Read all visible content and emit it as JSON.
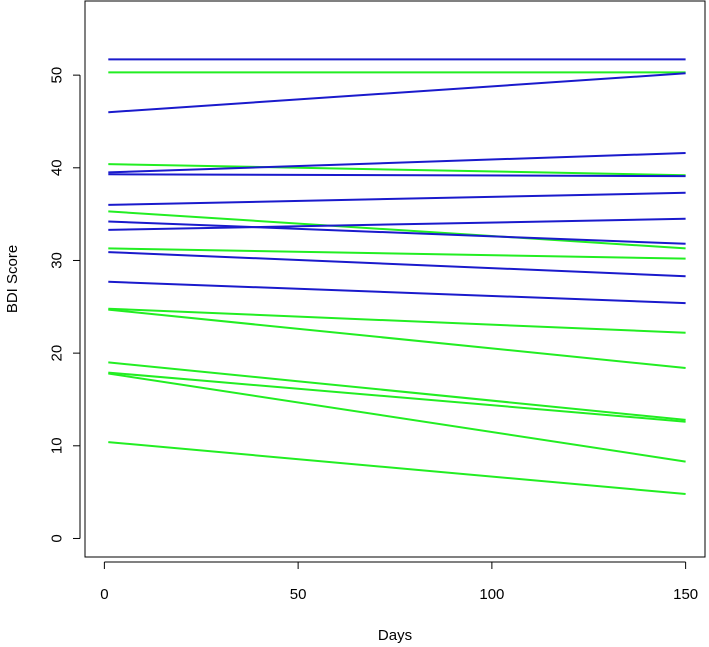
{
  "chart_data": {
    "type": "line",
    "title": "",
    "xlabel": "Days",
    "ylabel": "BDI Score",
    "xlim": [
      -5,
      155
    ],
    "ylim": [
      -2,
      58
    ],
    "x_ticks": [
      0,
      50,
      100,
      150
    ],
    "y_ticks": [
      0,
      10,
      20,
      30,
      40,
      50
    ],
    "x_tick_labels": [
      "0",
      "50",
      "100",
      "150"
    ],
    "y_tick_labels": [
      "0",
      "10",
      "20",
      "30",
      "40",
      "50"
    ],
    "grid": false,
    "legend": "none",
    "colors": {
      "blue": "#1a1acc",
      "green": "#22ee22"
    },
    "series": [
      {
        "color": "blue",
        "x": [
          1,
          150
        ],
        "y": [
          51.7,
          51.7
        ]
      },
      {
        "color": "green",
        "x": [
          1,
          150
        ],
        "y": [
          50.3,
          50.3
        ]
      },
      {
        "color": "blue",
        "x": [
          1,
          150
        ],
        "y": [
          46.0,
          50.2
        ]
      },
      {
        "color": "green",
        "x": [
          1,
          150
        ],
        "y": [
          40.4,
          39.2
        ]
      },
      {
        "color": "blue",
        "x": [
          1,
          150
        ],
        "y": [
          39.5,
          41.6
        ]
      },
      {
        "color": "blue",
        "x": [
          1,
          150
        ],
        "y": [
          39.3,
          39.1
        ]
      },
      {
        "color": "blue",
        "x": [
          1,
          150
        ],
        "y": [
          36.0,
          37.3
        ]
      },
      {
        "color": "green",
        "x": [
          1,
          150
        ],
        "y": [
          35.3,
          31.3
        ]
      },
      {
        "color": "blue",
        "x": [
          1,
          150
        ],
        "y": [
          34.2,
          31.8
        ]
      },
      {
        "color": "blue",
        "x": [
          1,
          150
        ],
        "y": [
          33.3,
          34.5
        ]
      },
      {
        "color": "green",
        "x": [
          1,
          150
        ],
        "y": [
          31.3,
          30.2
        ]
      },
      {
        "color": "blue",
        "x": [
          1,
          150
        ],
        "y": [
          30.9,
          28.3
        ]
      },
      {
        "color": "blue",
        "x": [
          1,
          150
        ],
        "y": [
          27.7,
          25.4
        ]
      },
      {
        "color": "green",
        "x": [
          1,
          150
        ],
        "y": [
          24.8,
          22.2
        ]
      },
      {
        "color": "green",
        "x": [
          1,
          150
        ],
        "y": [
          24.7,
          18.4
        ]
      },
      {
        "color": "green",
        "x": [
          1,
          150
        ],
        "y": [
          19.0,
          12.8
        ]
      },
      {
        "color": "green",
        "x": [
          1,
          150
        ],
        "y": [
          17.9,
          12.6
        ]
      },
      {
        "color": "green",
        "x": [
          1,
          150
        ],
        "y": [
          17.8,
          8.3
        ]
      },
      {
        "color": "green",
        "x": [
          1,
          150
        ],
        "y": [
          10.4,
          4.8
        ]
      }
    ]
  }
}
